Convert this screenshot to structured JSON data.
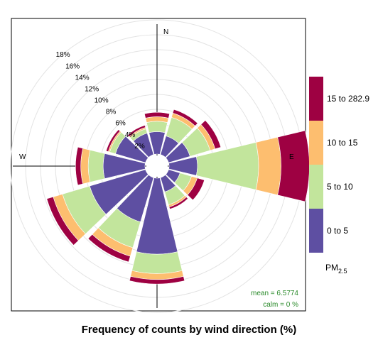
{
  "chart_data": {
    "type": "windrose",
    "title": "Frequency of counts by wind direction (%)",
    "radial_axis": {
      "ticks": [
        2,
        4,
        6,
        8,
        10,
        12,
        14,
        16,
        18
      ],
      "tick_labels": [
        "2%",
        "4%",
        "6%",
        "8%",
        "10%",
        "12%",
        "14%",
        "16%",
        "18%"
      ],
      "max": 18
    },
    "directions": [
      "N",
      "E",
      "W"
    ],
    "sectors_deg": [
      0,
      30,
      60,
      90,
      120,
      150,
      180,
      210,
      240,
      270,
      300,
      330
    ],
    "series": [
      {
        "name": "0 to 5",
        "color": "#5E4FA2",
        "values": [
          3.0,
          2.6,
          3.0,
          3.8,
          1.6,
          2.0,
          10.2,
          6.2,
          7.8,
          5.6,
          4.2,
          3.0
        ]
      },
      {
        "name": "5 to 10",
        "color": "#C2E59C",
        "values": [
          1.4,
          2.6,
          2.8,
          8.2,
          1.6,
          1.8,
          2.6,
          3.6,
          3.8,
          2.0,
          0.8,
          0.6
        ]
      },
      {
        "name": "10 to 15",
        "color": "#FDBE6F",
        "values": [
          0.6,
          0.6,
          0.7,
          3.0,
          0.8,
          0.3,
          0.8,
          1.2,
          1.3,
          1.0,
          0.2,
          0.2
        ]
      },
      {
        "name": "15 to 282.9",
        "color": "#9E0142",
        "values": [
          0.6,
          0.5,
          0.8,
          3.8,
          1.0,
          0.3,
          0.6,
          0.8,
          0.9,
          0.7,
          0.3,
          0.3
        ]
      }
    ],
    "legend": {
      "title_main": "PM",
      "title_sub": "2.5",
      "entries": [
        "15 to 282.9",
        "10 to 15",
        "5 to 10",
        "0 to 5"
      ],
      "colors": [
        "#9E0142",
        "#FDBE6F",
        "#C2E59C",
        "#5E4FA2"
      ]
    },
    "stats": {
      "mean": "mean  =  6.5774",
      "calm": "calm =  0 %"
    }
  }
}
